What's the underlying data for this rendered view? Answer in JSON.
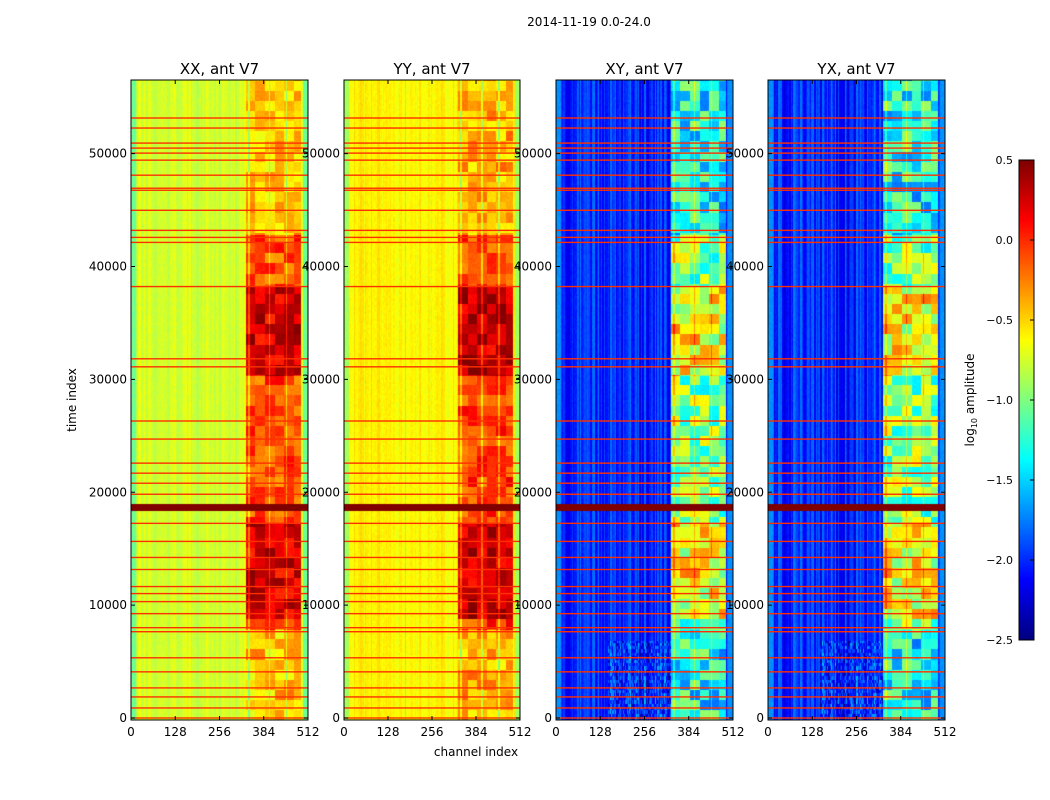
{
  "chart_data": {
    "type": "heatmap",
    "title": "2014-11-19 0.0-24.0",
    "xlabel": "channel index",
    "ylabel": "time index",
    "xlim": [
      0,
      512
    ],
    "ylim": [
      0,
      56700
    ],
    "xticks": [
      "0",
      "128",
      "256",
      "384",
      "512"
    ],
    "yticks": [
      "0",
      "10000",
      "20000",
      "30000",
      "40000",
      "50000"
    ],
    "panels": [
      {
        "title": "XX, ant V7",
        "kind": "auto",
        "base_level": -0.75,
        "band_level": -0.1
      },
      {
        "title": "YY, ant V7",
        "kind": "auto",
        "base_level": -0.6,
        "band_level": -0.05
      },
      {
        "title": "XY, ant V7",
        "kind": "cross",
        "base_level": -2.0,
        "band_level": -1.0
      },
      {
        "title": "YX, ant V7",
        "kind": "cross",
        "base_level": -2.0,
        "band_level": -1.0
      }
    ],
    "high_band_channels": [
      330,
      490
    ],
    "flagged_rows": [
      53333,
      52444,
      51111,
      50667,
      50222,
      49600,
      48267,
      47111,
      46933,
      45156,
      43378,
      42756,
      42311,
      38400,
      32000,
      31289,
      26489,
      24889,
      22756,
      21867,
      20978,
      20000,
      17422,
      15822,
      14400,
      13333,
      11822,
      11200,
      10489,
      9422,
      8178,
      7822,
      5511,
      4267,
      2844,
      2044,
      1067,
      178
    ],
    "flagged_band": [
      18600,
      19200
    ],
    "colorbar": {
      "label": "log10 amplitude",
      "label_main": "log",
      "label_sub": "10",
      "label_rest": " amplitude",
      "range": [
        -2.5,
        0.5
      ],
      "ticks": [
        "0.5",
        "0.0",
        "−0.5",
        "−1.0",
        "−1.5",
        "−2.0",
        "−2.5"
      ],
      "colormap": "jet"
    }
  }
}
